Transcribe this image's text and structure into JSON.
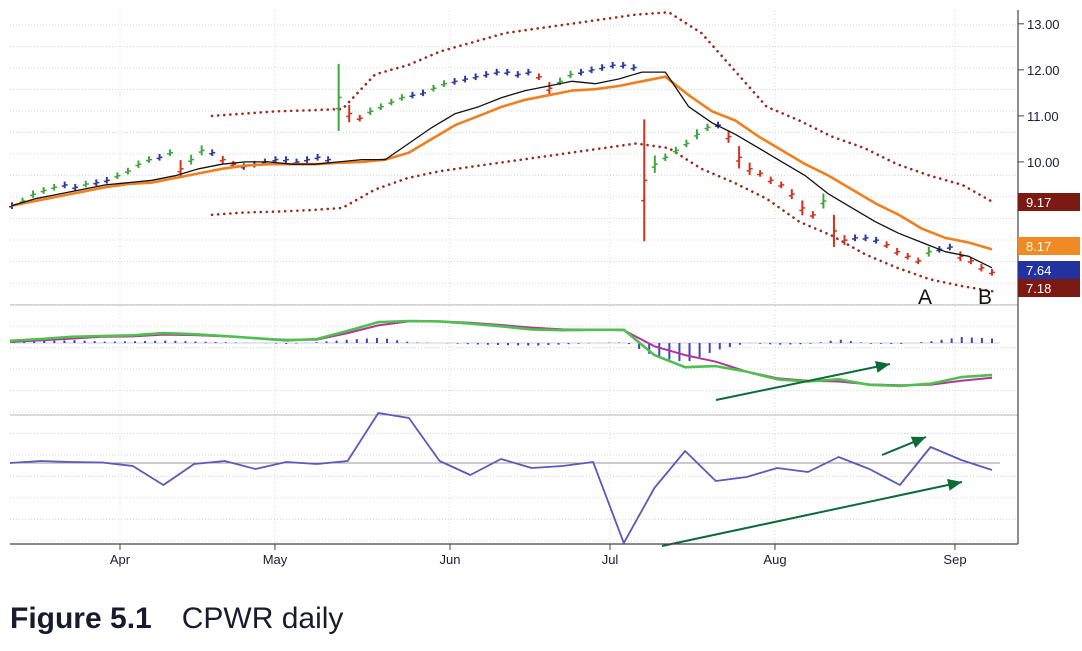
{
  "caption": {
    "figure_label": "Figure 5.1",
    "text": "CPWR daily"
  },
  "chart_data": {
    "type": "bar",
    "title": "",
    "x_labels": [
      "Apr",
      "May",
      "Jun",
      "Jul",
      "Aug",
      "Sep"
    ],
    "y_ticks": [
      10.0,
      11.0,
      12.0,
      13.0
    ],
    "ylim": [
      7.0,
      13.3
    ],
    "grid": true,
    "colors": {
      "up_bar": "#3fa63f",
      "down_bar": "#d2321e",
      "neutral_bar": "#2e3aa0",
      "fast_ema": "#111111",
      "slow_ema": "#f07f1f",
      "envelope": "#9a2a1a",
      "macd_line": "#4fbf4f",
      "signal_line": "#b0369b",
      "histogram": "#3e45b8",
      "force_index": "#5a5aba",
      "arrow": "#0d6b3a"
    },
    "price_labels": [
      {
        "value": "9.17",
        "color": "#7a1a12"
      },
      {
        "value": "8.17",
        "color": "#f08a24"
      },
      {
        "value": "7.64",
        "color": "#2233a0"
      },
      {
        "value": "7.18",
        "color": "#7a1a12"
      }
    ],
    "annotations": [
      "A",
      "B"
    ],
    "series": [
      {
        "name": "price",
        "values": [
          9.05,
          9.15,
          9.3,
          9.38,
          9.45,
          9.5,
          9.45,
          9.52,
          9.55,
          9.6,
          9.7,
          9.8,
          9.95,
          10.05,
          10.1,
          10.2,
          9.85,
          10.05,
          10.25,
          10.2,
          10.05,
          9.95,
          9.9,
          9.95,
          10.0,
          10.05,
          10.05,
          10.0,
          10.05,
          10.1,
          10.05,
          11.4,
          11.05,
          10.95,
          11.1,
          11.2,
          11.3,
          11.4,
          11.45,
          11.5,
          11.6,
          11.7,
          11.75,
          11.8,
          11.85,
          11.9,
          11.95,
          11.95,
          11.9,
          11.95,
          11.85,
          11.6,
          11.75,
          11.9,
          11.95,
          12.0,
          12.05,
          12.1,
          12.1,
          12.05,
          9.6,
          9.95,
          10.1,
          10.25,
          10.4,
          10.6,
          10.75,
          10.8,
          10.55,
          10.1,
          9.85,
          9.75,
          9.6,
          9.5,
          9.3,
          9.0,
          8.85,
          9.15,
          8.5,
          8.3,
          8.35,
          8.35,
          8.3,
          8.2,
          8.05,
          7.95,
          7.85,
          8.05,
          8.1,
          8.15,
          7.95,
          7.85,
          7.7,
          7.6
        ]
      },
      {
        "name": "fast_ema",
        "values": [
          9.05,
          9.2,
          9.3,
          9.4,
          9.5,
          9.55,
          9.6,
          9.7,
          9.85,
          9.95,
          10.0,
          10.0,
          9.95,
          9.95,
          10.0,
          10.05,
          10.05,
          10.4,
          10.75,
          11.05,
          11.2,
          11.4,
          11.55,
          11.65,
          11.75,
          11.7,
          11.8,
          11.95,
          11.95,
          11.2,
          10.85,
          10.6,
          10.3,
          10.0,
          9.7,
          9.3,
          9.0,
          8.7,
          8.45,
          8.25,
          8.05,
          7.95,
          7.7
        ]
      },
      {
        "name": "slow_ema",
        "values": [
          9.05,
          9.15,
          9.25,
          9.35,
          9.45,
          9.52,
          9.55,
          9.65,
          9.75,
          9.85,
          9.92,
          9.95,
          9.95,
          9.95,
          9.98,
          10.0,
          10.05,
          10.2,
          10.5,
          10.8,
          11.0,
          11.2,
          11.35,
          11.45,
          11.55,
          11.58,
          11.65,
          11.75,
          11.85,
          11.45,
          11.1,
          10.9,
          10.55,
          10.25,
          9.95,
          9.7,
          9.4,
          9.1,
          8.85,
          8.55,
          8.35,
          8.25,
          8.1
        ]
      },
      {
        "name": "upper_envelope",
        "values": [
          11.0,
          11.05,
          11.1,
          11.12,
          11.15,
          11.9,
          12.1,
          12.4,
          12.6,
          12.8,
          12.9,
          13.0,
          13.1,
          13.2,
          13.25,
          12.8,
          12.0,
          11.2,
          10.9,
          10.55,
          10.3,
          9.95,
          9.7,
          9.5,
          9.1
        ]
      },
      {
        "name": "lower_envelope",
        "values": [
          8.85,
          8.9,
          8.92,
          8.95,
          9.0,
          9.4,
          9.65,
          9.8,
          9.9,
          10.0,
          10.1,
          10.2,
          10.3,
          10.4,
          10.3,
          9.85,
          9.55,
          9.2,
          8.7,
          8.4,
          8.0,
          7.7,
          7.45,
          7.3,
          7.18
        ]
      },
      {
        "name": "macd_line",
        "values": [
          0.1,
          0.18,
          0.28,
          0.32,
          0.35,
          0.45,
          0.4,
          0.32,
          0.22,
          0.12,
          0.18,
          0.55,
          0.95,
          1.0,
          0.98,
          0.88,
          0.76,
          0.62,
          0.58,
          0.6,
          0.6,
          -0.55,
          -1.1,
          -1.05,
          -1.3,
          -1.65,
          -1.75,
          -1.65,
          -1.9,
          -1.95,
          -1.85,
          -1.55,
          -1.45
        ]
      },
      {
        "name": "signal_line",
        "values": [
          0.05,
          0.12,
          0.2,
          0.28,
          0.3,
          0.38,
          0.36,
          0.3,
          0.22,
          0.15,
          0.15,
          0.45,
          0.8,
          0.98,
          0.98,
          0.92,
          0.82,
          0.7,
          0.62,
          0.6,
          0.58,
          -0.15,
          -0.55,
          -0.85,
          -1.3,
          -1.6,
          -1.72,
          -1.75,
          -1.88,
          -1.92,
          -1.9,
          -1.72,
          -1.58
        ]
      },
      {
        "name": "force_index",
        "values": [
          0,
          0.2,
          0.1,
          0.05,
          -0.3,
          -2.2,
          -0.1,
          0.2,
          -0.6,
          0.1,
          -0.1,
          0.2,
          5.0,
          4.5,
          0.2,
          -1.2,
          0.4,
          -0.5,
          -0.3,
          0.1,
          -8.0,
          -2.5,
          1.2,
          -1.8,
          -1.4,
          -0.5,
          -0.9,
          0.6,
          -0.6,
          -2.2,
          1.6,
          0.3,
          -0.7
        ]
      }
    ]
  }
}
